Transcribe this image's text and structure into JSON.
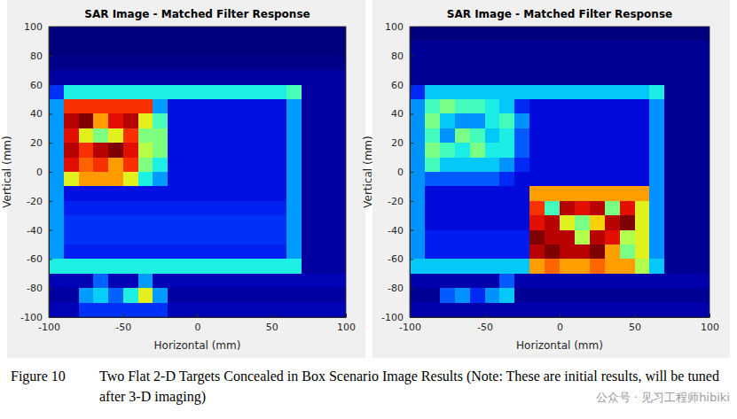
{
  "chart_data": [
    {
      "type": "heatmap",
      "title": "SAR Image - Matched Filter Response",
      "x_label": "Horizontal (mm)",
      "y_label": "Vertical (mm)",
      "xlim": [
        -100,
        100
      ],
      "ylim": [
        -100,
        100
      ],
      "xticks": [
        -100,
        -50,
        0,
        50,
        100
      ],
      "yticks": [
        -100,
        -80,
        -60,
        -40,
        -20,
        0,
        20,
        40,
        60,
        80,
        100
      ],
      "x": [
        -95,
        -85,
        -75,
        -65,
        -55,
        -45,
        -35,
        -25,
        -15,
        -5,
        5,
        15,
        25,
        35,
        45,
        55,
        65,
        75,
        85,
        95
      ],
      "y": [
        95,
        85,
        75,
        65,
        55,
        45,
        35,
        25,
        15,
        5,
        -5,
        -15,
        -25,
        -35,
        -45,
        -55,
        -65,
        -75,
        -85,
        -95
      ],
      "values": [
        [
          0.05,
          0.05,
          0.05,
          0.05,
          0.05,
          0.05,
          0.05,
          0.05,
          0.05,
          0.05,
          0.05,
          0.05,
          0.05,
          0.05,
          0.05,
          0.05,
          0.05,
          0.05,
          0.05,
          0.05
        ],
        [
          0.05,
          0.05,
          0.05,
          0.05,
          0.05,
          0.05,
          0.05,
          0.05,
          0.05,
          0.05,
          0.05,
          0.05,
          0.05,
          0.05,
          0.05,
          0.05,
          0.05,
          0.05,
          0.05,
          0.05
        ],
        [
          0.06,
          0.06,
          0.06,
          0.06,
          0.06,
          0.06,
          0.06,
          0.06,
          0.06,
          0.06,
          0.06,
          0.06,
          0.06,
          0.06,
          0.06,
          0.06,
          0.06,
          0.06,
          0.06,
          0.06
        ],
        [
          0.08,
          0.08,
          0.08,
          0.08,
          0.08,
          0.08,
          0.08,
          0.08,
          0.08,
          0.08,
          0.08,
          0.08,
          0.08,
          0.08,
          0.08,
          0.08,
          0.08,
          0.08,
          0.08,
          0.08
        ],
        [
          0.2,
          0.4,
          0.4,
          0.4,
          0.4,
          0.4,
          0.4,
          0.4,
          0.4,
          0.4,
          0.4,
          0.4,
          0.4,
          0.4,
          0.4,
          0.4,
          0.45,
          0.08,
          0.08,
          0.08
        ],
        [
          0.3,
          0.8,
          0.8,
          0.8,
          0.8,
          0.8,
          0.8,
          0.3,
          0.15,
          0.15,
          0.15,
          0.15,
          0.15,
          0.15,
          0.15,
          0.15,
          0.3,
          0.08,
          0.08,
          0.08
        ],
        [
          0.3,
          0.9,
          0.95,
          0.7,
          0.85,
          0.9,
          0.6,
          0.45,
          0.15,
          0.15,
          0.15,
          0.15,
          0.15,
          0.15,
          0.15,
          0.15,
          0.3,
          0.08,
          0.08,
          0.08
        ],
        [
          0.3,
          0.85,
          0.6,
          0.5,
          0.6,
          0.8,
          0.5,
          0.5,
          0.15,
          0.15,
          0.15,
          0.15,
          0.15,
          0.15,
          0.15,
          0.15,
          0.3,
          0.08,
          0.08,
          0.08
        ],
        [
          0.3,
          0.9,
          0.8,
          0.9,
          0.95,
          0.85,
          0.55,
          0.5,
          0.15,
          0.15,
          0.15,
          0.15,
          0.15,
          0.15,
          0.15,
          0.15,
          0.3,
          0.08,
          0.08,
          0.08
        ],
        [
          0.3,
          0.85,
          0.75,
          0.8,
          0.7,
          0.8,
          0.5,
          0.4,
          0.15,
          0.15,
          0.15,
          0.15,
          0.15,
          0.15,
          0.15,
          0.15,
          0.3,
          0.08,
          0.08,
          0.08
        ],
        [
          0.3,
          0.6,
          0.7,
          0.7,
          0.7,
          0.6,
          0.4,
          0.3,
          0.15,
          0.15,
          0.15,
          0.15,
          0.15,
          0.15,
          0.15,
          0.15,
          0.3,
          0.08,
          0.08,
          0.08
        ],
        [
          0.3,
          0.15,
          0.15,
          0.15,
          0.15,
          0.15,
          0.15,
          0.15,
          0.15,
          0.15,
          0.15,
          0.15,
          0.15,
          0.15,
          0.15,
          0.15,
          0.3,
          0.08,
          0.08,
          0.08
        ],
        [
          0.3,
          0.18,
          0.18,
          0.18,
          0.18,
          0.18,
          0.18,
          0.18,
          0.18,
          0.18,
          0.18,
          0.18,
          0.18,
          0.18,
          0.18,
          0.18,
          0.3,
          0.08,
          0.08,
          0.08
        ],
        [
          0.3,
          0.2,
          0.2,
          0.2,
          0.2,
          0.2,
          0.2,
          0.2,
          0.2,
          0.2,
          0.2,
          0.2,
          0.2,
          0.2,
          0.2,
          0.2,
          0.3,
          0.08,
          0.08,
          0.08
        ],
        [
          0.3,
          0.2,
          0.2,
          0.2,
          0.2,
          0.2,
          0.2,
          0.2,
          0.2,
          0.2,
          0.2,
          0.2,
          0.2,
          0.2,
          0.2,
          0.2,
          0.3,
          0.08,
          0.08,
          0.08
        ],
        [
          0.3,
          0.18,
          0.18,
          0.18,
          0.18,
          0.18,
          0.18,
          0.18,
          0.18,
          0.18,
          0.18,
          0.18,
          0.18,
          0.18,
          0.18,
          0.18,
          0.3,
          0.08,
          0.08,
          0.08
        ],
        [
          0.4,
          0.4,
          0.4,
          0.4,
          0.4,
          0.4,
          0.4,
          0.4,
          0.4,
          0.4,
          0.4,
          0.4,
          0.4,
          0.4,
          0.4,
          0.4,
          0.4,
          0.08,
          0.08,
          0.08
        ],
        [
          0.1,
          0.1,
          0.1,
          0.25,
          0.1,
          0.1,
          0.3,
          0.1,
          0.1,
          0.1,
          0.1,
          0.1,
          0.1,
          0.1,
          0.1,
          0.1,
          0.1,
          0.1,
          0.1,
          0.1
        ],
        [
          0.08,
          0.08,
          0.3,
          0.35,
          0.25,
          0.4,
          0.6,
          0.3,
          0.08,
          0.08,
          0.08,
          0.08,
          0.08,
          0.08,
          0.08,
          0.08,
          0.08,
          0.08,
          0.08,
          0.08
        ],
        [
          0.1,
          0.1,
          0.2,
          0.2,
          0.2,
          0.2,
          0.2,
          0.2,
          0.1,
          0.1,
          0.1,
          0.1,
          0.1,
          0.1,
          0.1,
          0.1,
          0.1,
          0.1,
          0.1,
          0.1
        ]
      ]
    },
    {
      "type": "heatmap",
      "title": "SAR Image - Matched Filter Response",
      "x_label": "Horizontal (mm)",
      "y_label": "Vertical (mm)",
      "xlim": [
        -100,
        100
      ],
      "ylim": [
        -100,
        100
      ],
      "xticks": [
        -100,
        -50,
        0,
        50,
        100
      ],
      "yticks": [
        -100,
        -80,
        -60,
        -40,
        -20,
        0,
        20,
        40,
        60,
        80,
        100
      ],
      "x": [
        -95,
        -85,
        -75,
        -65,
        -55,
        -45,
        -35,
        -25,
        -15,
        -5,
        5,
        15,
        25,
        35,
        45,
        55,
        65,
        75,
        85,
        95
      ],
      "y": [
        95,
        85,
        75,
        65,
        55,
        45,
        35,
        25,
        15,
        5,
        -5,
        -15,
        -25,
        -35,
        -45,
        -55,
        -65,
        -75,
        -85,
        -95
      ],
      "values": [
        [
          0.06,
          0.06,
          0.06,
          0.06,
          0.06,
          0.06,
          0.06,
          0.06,
          0.06,
          0.06,
          0.06,
          0.06,
          0.06,
          0.06,
          0.06,
          0.06,
          0.06,
          0.06,
          0.06,
          0.06
        ],
        [
          0.08,
          0.08,
          0.08,
          0.08,
          0.08,
          0.08,
          0.08,
          0.08,
          0.08,
          0.08,
          0.08,
          0.08,
          0.08,
          0.08,
          0.08,
          0.08,
          0.08,
          0.08,
          0.08,
          0.08
        ],
        [
          0.08,
          0.08,
          0.08,
          0.08,
          0.08,
          0.08,
          0.08,
          0.08,
          0.08,
          0.08,
          0.08,
          0.08,
          0.08,
          0.08,
          0.08,
          0.08,
          0.08,
          0.08,
          0.08,
          0.08
        ],
        [
          0.08,
          0.08,
          0.08,
          0.08,
          0.08,
          0.08,
          0.08,
          0.08,
          0.08,
          0.08,
          0.08,
          0.08,
          0.08,
          0.08,
          0.08,
          0.08,
          0.08,
          0.08,
          0.08,
          0.08
        ],
        [
          0.2,
          0.35,
          0.35,
          0.35,
          0.35,
          0.35,
          0.35,
          0.35,
          0.35,
          0.35,
          0.35,
          0.35,
          0.35,
          0.35,
          0.35,
          0.35,
          0.4,
          0.08,
          0.08,
          0.08
        ],
        [
          0.3,
          0.45,
          0.5,
          0.45,
          0.45,
          0.4,
          0.35,
          0.2,
          0.15,
          0.15,
          0.15,
          0.15,
          0.15,
          0.15,
          0.15,
          0.15,
          0.3,
          0.08,
          0.08,
          0.08
        ],
        [
          0.3,
          0.5,
          0.35,
          0.3,
          0.3,
          0.4,
          0.45,
          0.3,
          0.15,
          0.15,
          0.15,
          0.15,
          0.15,
          0.15,
          0.15,
          0.15,
          0.3,
          0.08,
          0.08,
          0.08
        ],
        [
          0.3,
          0.45,
          0.3,
          0.5,
          0.45,
          0.35,
          0.4,
          0.25,
          0.15,
          0.15,
          0.15,
          0.15,
          0.15,
          0.15,
          0.15,
          0.15,
          0.3,
          0.08,
          0.08,
          0.08
        ],
        [
          0.3,
          0.5,
          0.45,
          0.4,
          0.5,
          0.4,
          0.4,
          0.25,
          0.15,
          0.15,
          0.15,
          0.15,
          0.15,
          0.15,
          0.15,
          0.15,
          0.3,
          0.08,
          0.08,
          0.08
        ],
        [
          0.3,
          0.45,
          0.35,
          0.35,
          0.35,
          0.35,
          0.3,
          0.2,
          0.15,
          0.15,
          0.15,
          0.15,
          0.15,
          0.15,
          0.15,
          0.15,
          0.3,
          0.08,
          0.08,
          0.08
        ],
        [
          0.3,
          0.25,
          0.25,
          0.25,
          0.25,
          0.25,
          0.2,
          0.15,
          0.15,
          0.15,
          0.15,
          0.15,
          0.15,
          0.15,
          0.15,
          0.15,
          0.3,
          0.08,
          0.08,
          0.08
        ],
        [
          0.3,
          0.15,
          0.15,
          0.15,
          0.15,
          0.15,
          0.15,
          0.15,
          0.7,
          0.7,
          0.7,
          0.7,
          0.7,
          0.7,
          0.7,
          0.7,
          0.3,
          0.08,
          0.08,
          0.08
        ],
        [
          0.3,
          0.15,
          0.15,
          0.15,
          0.15,
          0.15,
          0.15,
          0.15,
          0.8,
          0.45,
          0.9,
          0.85,
          0.9,
          0.5,
          0.85,
          0.6,
          0.3,
          0.08,
          0.08,
          0.08
        ],
        [
          0.3,
          0.15,
          0.15,
          0.15,
          0.15,
          0.15,
          0.15,
          0.15,
          0.85,
          0.9,
          0.6,
          0.5,
          0.65,
          0.9,
          0.95,
          0.6,
          0.3,
          0.08,
          0.08,
          0.08
        ],
        [
          0.3,
          0.18,
          0.18,
          0.18,
          0.18,
          0.18,
          0.18,
          0.18,
          0.95,
          0.9,
          0.9,
          0.55,
          0.9,
          0.85,
          0.55,
          0.6,
          0.3,
          0.08,
          0.08,
          0.08
        ],
        [
          0.3,
          0.18,
          0.18,
          0.18,
          0.18,
          0.18,
          0.18,
          0.18,
          0.9,
          0.95,
          0.9,
          0.9,
          0.95,
          0.7,
          0.5,
          0.6,
          0.3,
          0.08,
          0.08,
          0.08
        ],
        [
          0.35,
          0.35,
          0.35,
          0.35,
          0.35,
          0.35,
          0.35,
          0.35,
          0.7,
          0.75,
          0.7,
          0.7,
          0.75,
          0.7,
          0.7,
          0.55,
          0.35,
          0.08,
          0.08,
          0.08
        ],
        [
          0.1,
          0.1,
          0.1,
          0.1,
          0.1,
          0.1,
          0.25,
          0.1,
          0.1,
          0.1,
          0.1,
          0.1,
          0.1,
          0.1,
          0.1,
          0.1,
          0.1,
          0.1,
          0.1,
          0.1
        ],
        [
          0.08,
          0.08,
          0.25,
          0.3,
          0.2,
          0.3,
          0.35,
          0.08,
          0.08,
          0.08,
          0.08,
          0.08,
          0.08,
          0.08,
          0.08,
          0.08,
          0.08,
          0.08,
          0.08,
          0.08
        ],
        [
          0.1,
          0.1,
          0.1,
          0.1,
          0.1,
          0.1,
          0.1,
          0.1,
          0.1,
          0.1,
          0.1,
          0.1,
          0.1,
          0.1,
          0.1,
          0.1,
          0.1,
          0.1,
          0.1,
          0.1
        ]
      ]
    }
  ],
  "caption": {
    "label": "Figure 10",
    "text": "Two Flat 2-D Targets Concealed in Box Scenario Image Results (Note: These are initial results, will be tuned after 3-D imaging)"
  },
  "watermark": "公众号 · 见习工程师hibiki"
}
